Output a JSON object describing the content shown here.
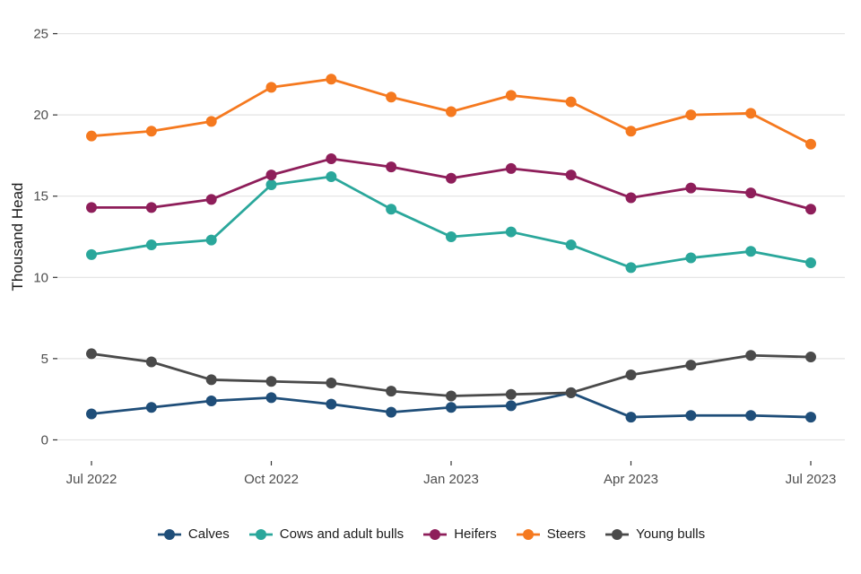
{
  "chart_data": {
    "type": "line",
    "title": "",
    "ylabel": "Thousand Head",
    "xlabel": "",
    "x": [
      "Jul 2022",
      "Aug 2022",
      "Sep 2022",
      "Oct 2022",
      "Nov 2022",
      "Dec 2022",
      "Jan 2023",
      "Feb 2023",
      "Mar 2023",
      "Apr 2023",
      "May 2023",
      "Jun 2023",
      "Jul 2023"
    ],
    "x_tick_labels": [
      "Jul 2022",
      "Oct 2022",
      "Jan 2023",
      "Apr 2023",
      "Jul 2023"
    ],
    "x_tick_indices": [
      0,
      3,
      6,
      9,
      12
    ],
    "yticks": [
      0,
      5,
      10,
      15,
      20,
      25
    ],
    "ylim": [
      0,
      25
    ],
    "grid": true,
    "legend_position": "bottom",
    "series": [
      {
        "name": "Calves",
        "color": "#1f4e79",
        "values": [
          1.6,
          2.0,
          2.4,
          2.6,
          2.2,
          1.7,
          2.0,
          2.1,
          2.9,
          1.4,
          1.5,
          1.5,
          1.4
        ]
      },
      {
        "name": "Cows and adult bulls",
        "color": "#2aa79b",
        "values": [
          11.4,
          12.0,
          12.3,
          15.7,
          16.2,
          14.2,
          12.5,
          12.8,
          12.0,
          10.6,
          11.2,
          11.6,
          10.9
        ]
      },
      {
        "name": "Heifers",
        "color": "#8e1e5a",
        "values": [
          14.3,
          14.3,
          14.8,
          16.3,
          17.3,
          16.8,
          16.1,
          16.7,
          16.3,
          14.9,
          15.5,
          15.2,
          14.2
        ]
      },
      {
        "name": "Steers",
        "color": "#f5791f",
        "values": [
          18.7,
          19.0,
          19.6,
          21.7,
          22.2,
          21.1,
          20.2,
          21.2,
          20.8,
          19.0,
          20.0,
          20.1,
          18.2
        ]
      },
      {
        "name": "Young bulls",
        "color": "#4a4a4a",
        "values": [
          5.3,
          4.8,
          3.7,
          3.6,
          3.5,
          3.0,
          2.7,
          2.8,
          2.9,
          4.0,
          4.6,
          5.2,
          5.1
        ]
      }
    ],
    "styles": {
      "grid_color": "#e3e3e3",
      "tick_color": "#333333",
      "axis_text_color": "#4d4d4d",
      "axis_title_color": "#1a1a1a",
      "legend_text_color": "#1a1a1a",
      "background": "#ffffff"
    }
  }
}
